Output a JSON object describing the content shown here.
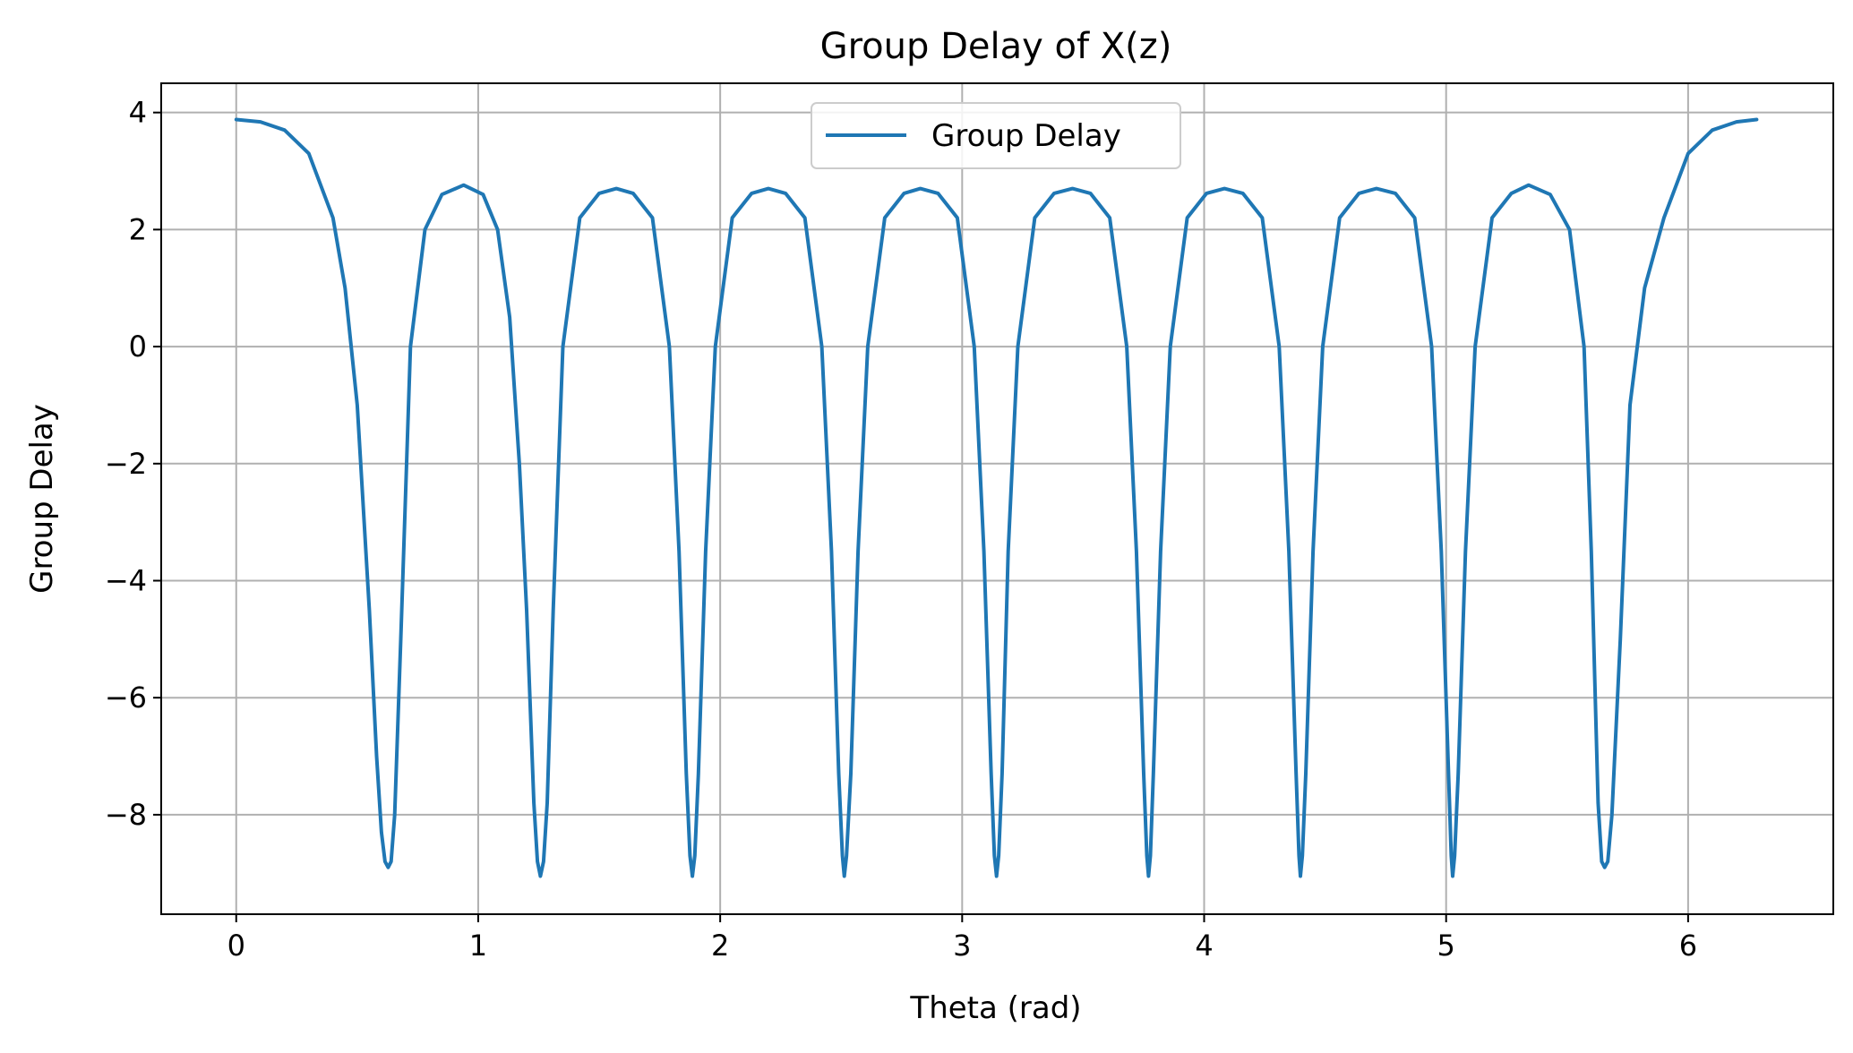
{
  "chart_data": {
    "type": "line",
    "title": "Group Delay of X(z)",
    "xlabel": "Theta (rad)",
    "ylabel": "Group Delay",
    "xlim": [
      -0.31,
      6.6
    ],
    "ylim": [
      -9.7,
      4.5
    ],
    "grid": true,
    "legend_position": "upper center",
    "x_ticks": [
      0,
      1,
      2,
      3,
      4,
      5,
      6
    ],
    "x_tick_labels": [
      "0",
      "1",
      "2",
      "3",
      "4",
      "5",
      "6"
    ],
    "y_ticks": [
      4,
      2,
      0,
      -2,
      -4,
      -6,
      -8
    ],
    "y_tick_labels": [
      "4",
      "2",
      "0",
      "−2",
      "−4",
      "−6",
      "−8"
    ],
    "series": [
      {
        "name": "Group Delay",
        "color": "#1f77b4",
        "x": [
          0.0,
          0.1,
          0.2,
          0.3,
          0.4,
          0.45,
          0.5,
          0.55,
          0.58,
          0.6,
          0.615,
          0.628,
          0.64,
          0.655,
          0.68,
          0.72,
          0.78,
          0.85,
          0.94,
          1.02,
          1.08,
          1.13,
          1.17,
          1.2,
          1.23,
          1.245,
          1.257,
          1.27,
          1.285,
          1.31,
          1.35,
          1.42,
          1.5,
          1.571,
          1.64,
          1.72,
          1.79,
          1.83,
          1.86,
          1.875,
          1.885,
          1.895,
          1.91,
          1.94,
          1.98,
          2.05,
          2.13,
          2.199,
          2.27,
          2.35,
          2.42,
          2.46,
          2.49,
          2.505,
          2.513,
          2.522,
          2.54,
          2.57,
          2.61,
          2.68,
          2.76,
          2.827,
          2.9,
          2.98,
          3.05,
          3.09,
          3.12,
          3.133,
          3.142,
          3.151,
          3.165,
          3.19,
          3.23,
          3.3,
          3.38,
          3.456,
          3.53,
          3.61,
          3.68,
          3.72,
          3.75,
          3.763,
          3.77,
          3.778,
          3.79,
          3.82,
          3.86,
          3.93,
          4.01,
          4.084,
          4.16,
          4.24,
          4.31,
          4.35,
          4.38,
          4.392,
          4.398,
          4.406,
          4.42,
          4.45,
          4.49,
          4.56,
          4.64,
          4.712,
          4.79,
          4.87,
          4.94,
          4.98,
          5.01,
          5.021,
          5.027,
          5.035,
          5.05,
          5.08,
          5.12,
          5.19,
          5.27,
          5.341,
          5.43,
          5.51,
          5.57,
          5.6,
          5.628,
          5.643,
          5.655,
          5.668,
          5.685,
          5.72,
          5.76,
          5.82,
          5.9,
          6.0,
          6.1,
          6.2,
          6.283
        ],
        "y": [
          3.88,
          3.84,
          3.7,
          3.3,
          2.2,
          1.0,
          -1.0,
          -4.5,
          -7.0,
          -8.3,
          -8.8,
          -8.9,
          -8.8,
          -8.0,
          -5.0,
          0.0,
          2.0,
          2.6,
          2.76,
          2.6,
          2.0,
          0.5,
          -2.0,
          -4.5,
          -7.8,
          -8.8,
          -9.05,
          -8.8,
          -7.8,
          -4.5,
          0.0,
          2.2,
          2.62,
          2.7,
          2.62,
          2.2,
          0.0,
          -3.5,
          -7.3,
          -8.7,
          -9.05,
          -8.7,
          -7.3,
          -3.5,
          0.0,
          2.2,
          2.62,
          2.7,
          2.62,
          2.2,
          0.0,
          -3.5,
          -7.3,
          -8.7,
          -9.05,
          -8.7,
          -7.3,
          -3.5,
          0.0,
          2.2,
          2.62,
          2.7,
          2.62,
          2.2,
          0.0,
          -3.5,
          -7.3,
          -8.7,
          -9.05,
          -8.7,
          -7.3,
          -3.5,
          0.0,
          2.2,
          2.62,
          2.7,
          2.62,
          2.2,
          0.0,
          -3.5,
          -7.3,
          -8.7,
          -9.05,
          -8.7,
          -7.3,
          -3.5,
          0.0,
          2.2,
          2.62,
          2.7,
          2.62,
          2.2,
          0.0,
          -3.5,
          -7.3,
          -8.7,
          -9.05,
          -8.7,
          -7.3,
          -3.5,
          0.0,
          2.2,
          2.62,
          2.7,
          2.62,
          2.2,
          0.0,
          -3.5,
          -7.3,
          -8.7,
          -9.05,
          -8.7,
          -7.3,
          -3.5,
          0.0,
          2.2,
          2.62,
          2.76,
          2.6,
          2.0,
          0.0,
          -3.5,
          -7.8,
          -8.8,
          -8.9,
          -8.8,
          -8.0,
          -5.0,
          -1.0,
          1.0,
          2.2,
          3.3,
          3.7,
          3.84,
          3.88
        ]
      }
    ]
  }
}
